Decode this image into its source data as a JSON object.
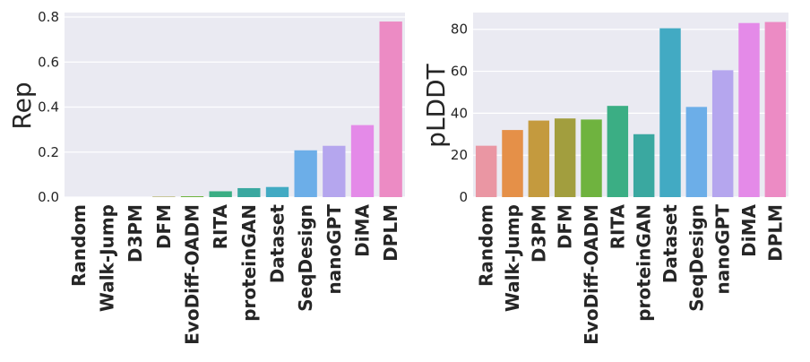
{
  "chart_data": [
    {
      "type": "bar",
      "title": "",
      "xlabel": "",
      "ylabel": "Rep",
      "ylim": [
        0,
        0.82
      ],
      "yticks": [
        0.0,
        0.2,
        0.4,
        0.6,
        0.8
      ],
      "ytick_labels": [
        "0.0",
        "0.2",
        "0.4",
        "0.6",
        "0.8"
      ],
      "grid": true,
      "categories": [
        "Random",
        "Walk-Jump",
        "D3PM",
        "DFM",
        "EvoDiff-OADM",
        "RITA",
        "proteinGAN",
        "Dataset",
        "SeqDesign",
        "nanoGPT",
        "DiMA",
        "DPLM"
      ],
      "values": [
        0.0,
        0.0,
        0.0,
        0.002,
        0.004,
        0.026,
        0.04,
        0.045,
        0.208,
        0.228,
        0.32,
        0.78
      ],
      "colors": [
        "#ea96a3",
        "#e59048",
        "#c49a3e",
        "#a29e3e",
        "#6fb33f",
        "#3bae84",
        "#3aa8a0",
        "#42aac3",
        "#6caee8",
        "#b5a6ee",
        "#e48ae8",
        "#ec8bc4"
      ]
    },
    {
      "type": "bar",
      "title": "",
      "xlabel": "",
      "ylabel": "pLDDT",
      "ylim": [
        0,
        88
      ],
      "yticks": [
        0,
        20,
        40,
        60,
        80
      ],
      "ytick_labels": [
        "0",
        "20",
        "40",
        "60",
        "80"
      ],
      "grid": true,
      "categories": [
        "Random",
        "Walk-Jump",
        "D3PM",
        "DFM",
        "EvoDiff-OADM",
        "RITA",
        "proteinGAN",
        "Dataset",
        "SeqDesign",
        "nanoGPT",
        "DiMA",
        "DPLM"
      ],
      "values": [
        24.5,
        32,
        36.5,
        37.5,
        37,
        43.5,
        30,
        80.5,
        43,
        60.5,
        83,
        83.5
      ],
      "colors": [
        "#ea96a3",
        "#e59048",
        "#c49a3e",
        "#a29e3e",
        "#6fb33f",
        "#3bae84",
        "#3aa8a0",
        "#42aac3",
        "#6caee8",
        "#b5a6ee",
        "#e48ae8",
        "#ec8bc4"
      ]
    }
  ]
}
